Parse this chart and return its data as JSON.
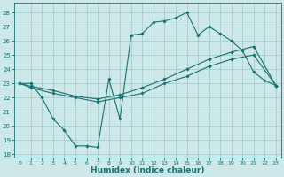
{
  "xlabel": "Humidex (Indice chaleur)",
  "bg_color": "#cce8e8",
  "grid_color": "#aacccc",
  "line_color": "#1a7070",
  "xlim": [
    -0.5,
    23.5
  ],
  "ylim": [
    17.8,
    28.7
  ],
  "yticks": [
    18,
    19,
    20,
    21,
    22,
    23,
    24,
    25,
    26,
    27,
    28
  ],
  "xticks": [
    0,
    1,
    2,
    3,
    4,
    5,
    6,
    7,
    8,
    9,
    10,
    11,
    12,
    13,
    14,
    15,
    16,
    17,
    18,
    19,
    20,
    21,
    22,
    23
  ],
  "line1_x": [
    0,
    1,
    2,
    3,
    4,
    5,
    6,
    7,
    8,
    9,
    10,
    11,
    12,
    13,
    14,
    15,
    16,
    17,
    18,
    19,
    20,
    21,
    22,
    23
  ],
  "line1_y": [
    23.0,
    23.0,
    22.0,
    20.5,
    19.7,
    18.6,
    18.6,
    18.5,
    23.3,
    20.5,
    26.4,
    26.5,
    27.3,
    27.4,
    27.6,
    28.0,
    26.4,
    27.0,
    26.5,
    26.0,
    25.3,
    23.8,
    23.2,
    22.85
  ],
  "line2_x": [
    0,
    1,
    3,
    5,
    7,
    9,
    11,
    13,
    15,
    17,
    19,
    21,
    23
  ],
  "line2_y": [
    23.0,
    22.8,
    22.5,
    22.1,
    21.9,
    22.2,
    22.7,
    23.3,
    24.0,
    24.7,
    25.2,
    25.6,
    22.85
  ],
  "line3_x": [
    0,
    1,
    3,
    5,
    7,
    9,
    11,
    13,
    15,
    17,
    19,
    21,
    23
  ],
  "line3_y": [
    23.0,
    22.7,
    22.3,
    22.0,
    21.7,
    22.0,
    22.3,
    23.0,
    23.5,
    24.2,
    24.7,
    25.0,
    22.85
  ]
}
